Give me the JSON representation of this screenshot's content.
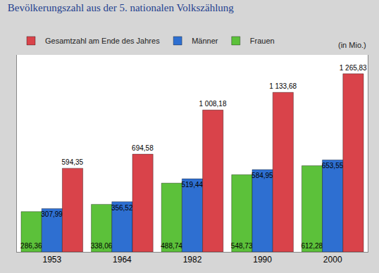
{
  "chart_data": {
    "type": "bar",
    "title": "Bevölkerungszahl aus der 5. nationalen Volkszählung",
    "annotation": "(in Mio.)",
    "categories": [
      "1953",
      "1964",
      "1982",
      "1990",
      "2000"
    ],
    "series": [
      {
        "name": "Gesamtzahl am Ende des Jahres",
        "color": "#d9434a",
        "values": [
          594.35,
          694.58,
          1008.18,
          1133.68,
          1265.83
        ],
        "value_labels": [
          "594,35",
          "694,58",
          "1 008,18",
          "1 133,68",
          "1 265,83"
        ]
      },
      {
        "name": "Männer",
        "color": "#2e6fd1",
        "values": [
          307.99,
          356.52,
          519.44,
          584.95,
          653.55
        ],
        "value_labels": [
          "307,99",
          "356,52",
          "519,44",
          "584,95",
          "653,55"
        ]
      },
      {
        "name": "Frauen",
        "color": "#5cc13a",
        "values": [
          286.36,
          338.06,
          488.74,
          548.73,
          612.28
        ],
        "value_labels": [
          "286,36",
          "338,06",
          "488,74",
          "548,73",
          "612,28"
        ]
      }
    ],
    "ylim": [
      0,
      1400
    ],
    "data_labels": true,
    "tick_labels": "x",
    "grid": false,
    "legend": "top"
  }
}
